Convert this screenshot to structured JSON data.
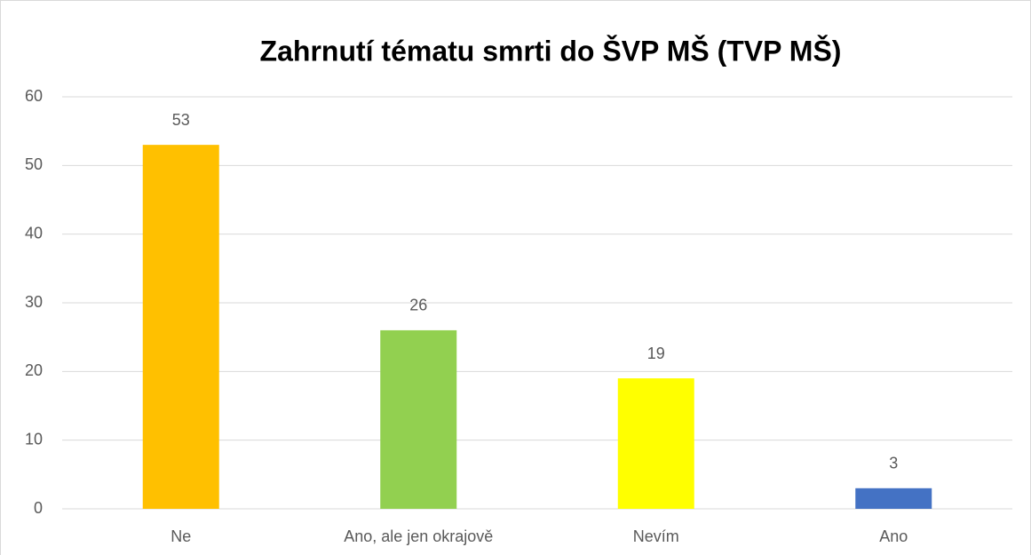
{
  "chart_data": {
    "type": "bar",
    "title": "Zahrnutí tématu smrti do ŠVP MŠ (TVP MŠ)",
    "categories": [
      "Ne",
      "Ano, ale jen okrajově",
      "Nevím",
      "Ano"
    ],
    "values": [
      53,
      26,
      19,
      3
    ],
    "colors": [
      "#ffc000",
      "#92d050",
      "#ffff00",
      "#4472c4"
    ],
    "ylim": [
      0,
      60
    ],
    "yticks": [
      0,
      10,
      20,
      30,
      40,
      50,
      60
    ],
    "grid": true,
    "data_labels": true
  }
}
